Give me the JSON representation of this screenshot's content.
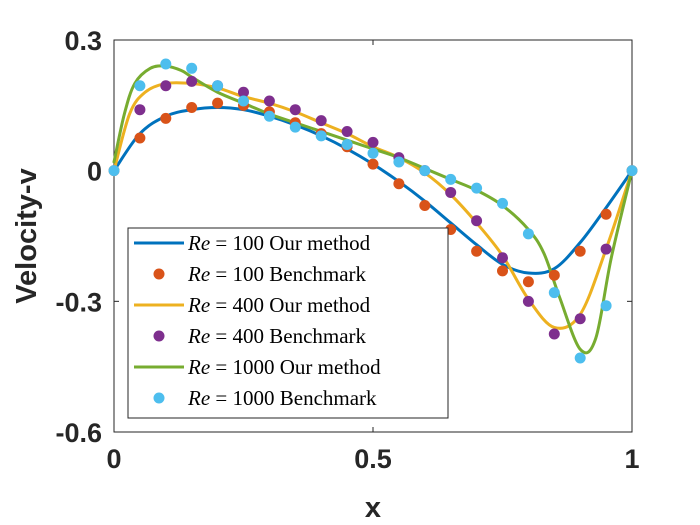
{
  "chart_data": {
    "type": "line",
    "title": "",
    "xlabel": "x",
    "ylabel": "Velocity-v",
    "xlim": [
      0,
      1
    ],
    "ylim": [
      -0.6,
      0.3
    ],
    "xticks": [
      0,
      0.5,
      1
    ],
    "xtick_labels": [
      "0",
      "0.5",
      "1"
    ],
    "yticks": [
      0.3,
      0,
      -0.3,
      -0.6
    ],
    "ytick_labels": [
      "0.3",
      "0",
      "-0.3",
      "-0.6"
    ],
    "grid": false,
    "legend_position": "bottom-left",
    "series": [
      {
        "name": "Re = 100 Our method",
        "legend": {
          "re": "Re",
          "eq": " = 100 ",
          "rest": "Our method"
        },
        "kind": "line",
        "color": "#0072BD",
        "x": [
          0,
          0.05,
          0.1,
          0.15,
          0.2,
          0.25,
          0.3,
          0.35,
          0.4,
          0.45,
          0.5,
          0.55,
          0.6,
          0.65,
          0.7,
          0.75,
          0.8,
          0.85,
          0.9,
          0.95,
          1
        ],
        "y": [
          0,
          0.085,
          0.125,
          0.14,
          0.145,
          0.14,
          0.125,
          0.105,
          0.08,
          0.05,
          0.015,
          -0.025,
          -0.07,
          -0.12,
          -0.17,
          -0.215,
          -0.235,
          -0.225,
          -0.165,
          -0.085,
          0
        ]
      },
      {
        "name": "Re = 100 Benchmark",
        "legend": {
          "re": "Re",
          "eq": " = 100 ",
          "rest": "Benchmark"
        },
        "kind": "scatter",
        "color": "#D95319",
        "x": [
          0,
          0.05,
          0.1,
          0.15,
          0.2,
          0.25,
          0.3,
          0.35,
          0.4,
          0.45,
          0.5,
          0.55,
          0.6,
          0.65,
          0.7,
          0.75,
          0.8,
          0.85,
          0.9,
          0.95,
          1
        ],
        "y": [
          0,
          0.075,
          0.12,
          0.145,
          0.155,
          0.15,
          0.135,
          0.11,
          0.085,
          0.055,
          0.015,
          -0.03,
          -0.08,
          -0.135,
          -0.185,
          -0.23,
          -0.255,
          -0.24,
          -0.185,
          -0.1,
          0
        ]
      },
      {
        "name": "Re = 400 Our method",
        "legend": {
          "re": "Re",
          "eq": " = 400 ",
          "rest": "Our method"
        },
        "kind": "line",
        "color": "#EDB120",
        "x": [
          0,
          0.03,
          0.06,
          0.1,
          0.15,
          0.2,
          0.25,
          0.3,
          0.35,
          0.4,
          0.45,
          0.5,
          0.55,
          0.6,
          0.65,
          0.7,
          0.75,
          0.8,
          0.85,
          0.9,
          0.95,
          1
        ],
        "y": [
          0,
          0.13,
          0.18,
          0.2,
          0.2,
          0.19,
          0.17,
          0.155,
          0.135,
          0.11,
          0.085,
          0.055,
          0.03,
          -0.005,
          -0.055,
          -0.12,
          -0.195,
          -0.295,
          -0.36,
          -0.33,
          -0.18,
          0
        ]
      },
      {
        "name": "Re = 400 Benchmark",
        "legend": {
          "re": "Re",
          "eq": " = 400 ",
          "rest": "Benchmark"
        },
        "kind": "scatter",
        "color": "#7E2F8E",
        "x": [
          0.05,
          0.1,
          0.15,
          0.2,
          0.25,
          0.3,
          0.35,
          0.4,
          0.45,
          0.5,
          0.55,
          0.6,
          0.65,
          0.7,
          0.75,
          0.8,
          0.85,
          0.9,
          0.95
        ],
        "y": [
          0.14,
          0.195,
          0.205,
          0.195,
          0.18,
          0.16,
          0.14,
          0.115,
          0.09,
          0.065,
          0.03,
          0,
          -0.05,
          -0.115,
          -0.2,
          -0.3,
          -0.375,
          -0.34,
          -0.18
        ]
      },
      {
        "name": "Re = 1000 Our method",
        "legend": {
          "re": "Re",
          "eq": " = 1000 ",
          "rest": "Our method"
        },
        "kind": "line",
        "color": "#77AC30",
        "x": [
          0,
          0.02,
          0.04,
          0.07,
          0.1,
          0.13,
          0.15,
          0.2,
          0.25,
          0.3,
          0.35,
          0.4,
          0.45,
          0.5,
          0.55,
          0.6,
          0.65,
          0.7,
          0.75,
          0.8,
          0.83,
          0.86,
          0.9,
          0.93,
          0.96,
          1
        ],
        "y": [
          0.02,
          0.13,
          0.2,
          0.235,
          0.24,
          0.23,
          0.215,
          0.18,
          0.155,
          0.13,
          0.11,
          0.09,
          0.07,
          0.05,
          0.03,
          0.005,
          -0.02,
          -0.045,
          -0.08,
          -0.135,
          -0.19,
          -0.29,
          -0.41,
          -0.385,
          -0.2,
          0
        ]
      },
      {
        "name": "Re = 1000 Benchmark",
        "legend": {
          "re": "Re",
          "eq": " = 1000 ",
          "rest": "Benchmark"
        },
        "kind": "scatter",
        "color": "#4DBEEE",
        "x": [
          0,
          0.05,
          0.1,
          0.15,
          0.2,
          0.25,
          0.3,
          0.35,
          0.4,
          0.45,
          0.5,
          0.55,
          0.6,
          0.65,
          0.7,
          0.75,
          0.8,
          0.85,
          0.9,
          0.95,
          1
        ],
        "y": [
          0,
          0.195,
          0.245,
          0.235,
          0.195,
          0.16,
          0.125,
          0.1,
          0.08,
          0.06,
          0.04,
          0.02,
          0,
          -0.02,
          -0.04,
          -0.075,
          -0.145,
          -0.28,
          -0.43,
          -0.31,
          0
        ]
      }
    ]
  }
}
